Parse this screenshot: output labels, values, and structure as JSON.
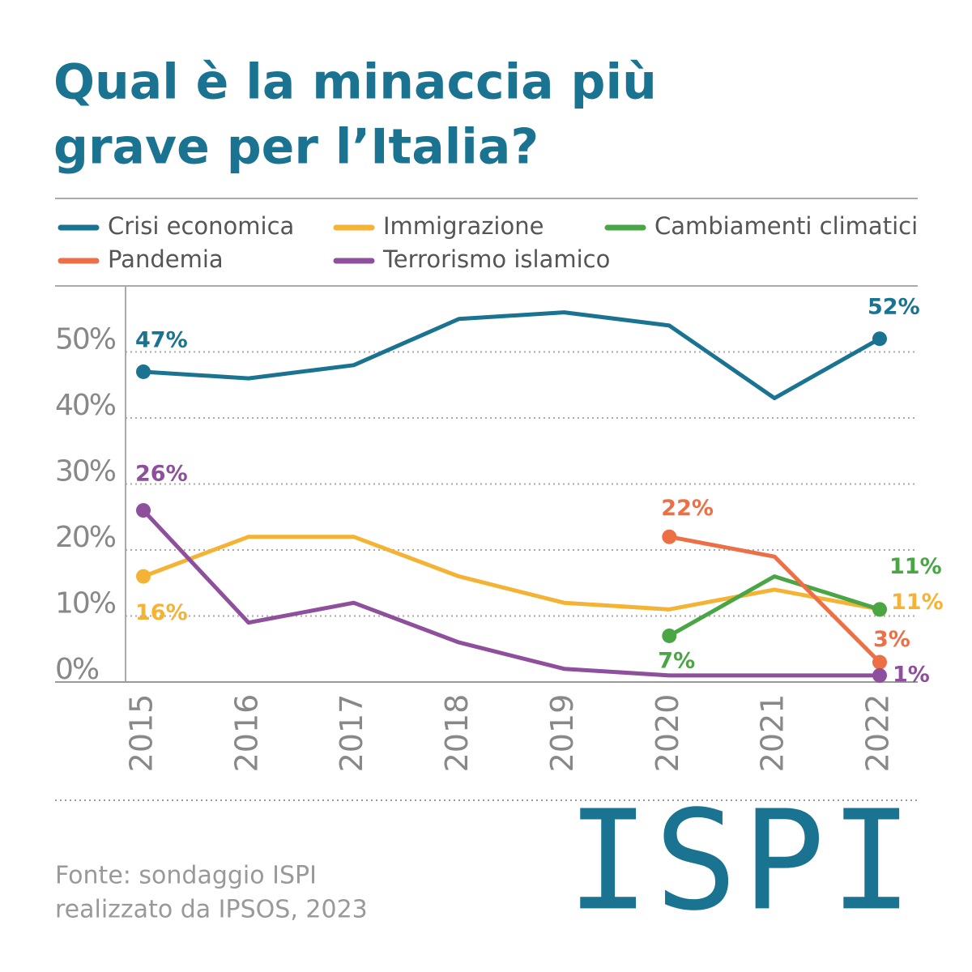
{
  "chart_data": {
    "type": "line",
    "title": [
      "Qual è la minaccia più",
      "grave per l’Italia?"
    ],
    "x": [
      "2015",
      "2016",
      "2017",
      "2018",
      "2019",
      "2020",
      "2021",
      "2022"
    ],
    "series": [
      {
        "name": "Crisi economica",
        "color": "#1a7391",
        "values": [
          47,
          46,
          48,
          55,
          56,
          54,
          43,
          52
        ],
        "value_labels": [
          "47%",
          null,
          null,
          null,
          null,
          null,
          null,
          "52%"
        ]
      },
      {
        "name": "Immigrazione",
        "color": "#f5b335",
        "values": [
          16,
          22,
          22,
          16,
          12,
          11,
          14,
          11
        ],
        "value_labels": [
          "16%",
          null,
          null,
          null,
          null,
          null,
          null,
          "11%"
        ]
      },
      {
        "name": "Cambiamenti climatici",
        "color": "#4aa544",
        "values": [
          null,
          null,
          null,
          null,
          null,
          7,
          16,
          11
        ],
        "value_labels": [
          null,
          null,
          null,
          null,
          null,
          "7%",
          null,
          "11%"
        ]
      },
      {
        "name": "Pandemia",
        "color": "#ec6f45",
        "values": [
          null,
          null,
          null,
          null,
          null,
          22,
          19,
          3
        ],
        "value_labels": [
          null,
          null,
          null,
          null,
          null,
          "22%",
          null,
          "3%"
        ]
      },
      {
        "name": "Terrorismo islamico",
        "color": "#8e4f9c",
        "values": [
          26,
          9,
          12,
          6,
          2,
          1,
          1,
          1
        ],
        "value_labels": [
          "26%",
          null,
          null,
          null,
          null,
          null,
          null,
          "1%"
        ]
      }
    ],
    "ylim": [
      0,
      60
    ],
    "yticks": [
      {
        "value": 0,
        "label": "0%"
      },
      {
        "value": 10,
        "label": "10%"
      },
      {
        "value": 20,
        "label": "20%"
      },
      {
        "value": 30,
        "label": "30%"
      },
      {
        "value": 40,
        "label": "40%"
      },
      {
        "value": 50,
        "label": "50%"
      }
    ],
    "grid": true,
    "source": [
      "Fonte: sondaggio ISPI",
      "realizzato da IPSOS, 2023"
    ],
    "logo": "ISPI"
  }
}
